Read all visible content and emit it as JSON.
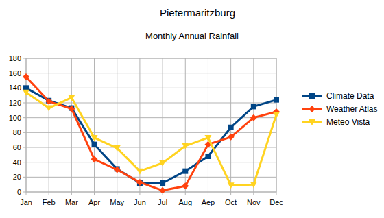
{
  "chart_data": {
    "type": "line",
    "title": "Pietermaritzburg",
    "subtitle": "Monthly Annual Rainfall",
    "categories": [
      "Jan",
      "Feb",
      "Mar",
      "Apr",
      "May",
      "Jun",
      "Jul",
      "Aug",
      "Aep",
      "Oct",
      "Nov",
      "Dec"
    ],
    "series": [
      {
        "name": "Climate Data",
        "color": "#004586",
        "marker": "square",
        "values": [
          140,
          123,
          113,
          64,
          31,
          12,
          12,
          28,
          48,
          87,
          115,
          124
        ]
      },
      {
        "name": "Weather Atlas",
        "color": "#ff420e",
        "marker": "diamond",
        "values": [
          155,
          122,
          112,
          44,
          30,
          13,
          2,
          8,
          64,
          74,
          100,
          108
        ]
      },
      {
        "name": "Meteo Vista",
        "color": "#ffd320",
        "marker": "triangle-down",
        "values": [
          134,
          113,
          127,
          73,
          59,
          28,
          39,
          62,
          73,
          9,
          10,
          104
        ]
      }
    ],
    "ylim": [
      0,
      180
    ],
    "yticks": [
      0,
      20,
      40,
      60,
      80,
      100,
      120,
      140,
      160,
      180
    ],
    "grid": true,
    "legend": "right"
  }
}
